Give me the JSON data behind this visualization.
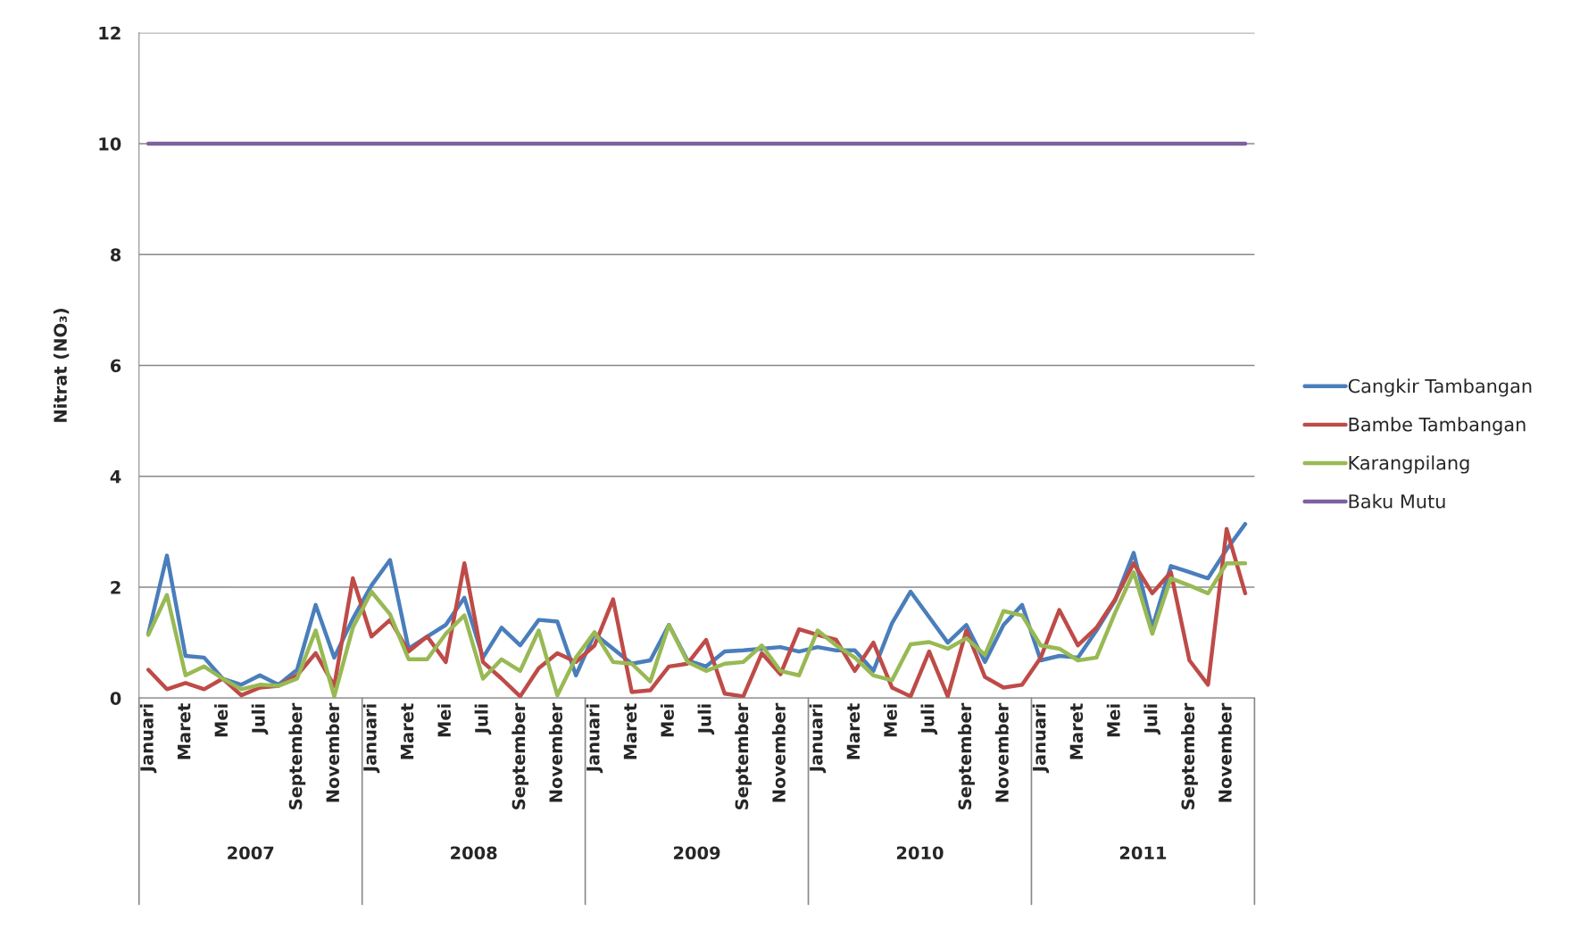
{
  "chart_data": {
    "type": "line",
    "ylabel": "Nitrat (NO₃)",
    "categories": [
      "Januari",
      null,
      "Maret",
      null,
      "Mei",
      null,
      "Juli",
      null,
      "September",
      null,
      "November",
      null,
      "Januari",
      null,
      "Maret",
      null,
      "Mei",
      null,
      "Juli",
      null,
      "September",
      null,
      "November",
      null,
      "Januari",
      null,
      "Maret",
      null,
      "Mei",
      null,
      "Juli",
      null,
      "September",
      null,
      "November",
      null,
      "Januari",
      null,
      "Maret",
      null,
      "Mei",
      null,
      "Juli",
      null,
      "September",
      null,
      "November",
      null,
      "Januari",
      null,
      "Maret",
      null,
      "Mei",
      null,
      "Juli",
      null,
      "September",
      null,
      "November",
      null
    ],
    "annotations": [
      "2007",
      "2008",
      "2009",
      "2010",
      "2011"
    ],
    "series": [
      {
        "name": "Cangkir Tambangan",
        "color": "#4a7ebb",
        "values": [
          1.16,
          2.57,
          0.76,
          0.73,
          0.35,
          0.24,
          0.41,
          0.24,
          0.51,
          1.68,
          0.73,
          1.43,
          2.03,
          2.49,
          0.89,
          1.11,
          1.32,
          1.81,
          0.73,
          1.27,
          0.95,
          1.41,
          1.38,
          0.41,
          1.16,
          0.89,
          0.62,
          0.68,
          1.32,
          0.68,
          0.57,
          0.84,
          0.86,
          0.89,
          0.92,
          0.84,
          0.92,
          0.86,
          0.86,
          0.49,
          1.35,
          1.92,
          1.46,
          1.0,
          1.32,
          0.65,
          1.32,
          1.68,
          0.68,
          0.76,
          0.73,
          1.22,
          1.76,
          2.62,
          1.27,
          2.38,
          2.27,
          2.16,
          2.68,
          3.14
        ]
      },
      {
        "name": "Bambe Tambangan",
        "color": "#be4b48",
        "values": [
          0.51,
          0.16,
          0.27,
          0.16,
          0.35,
          0.05,
          0.19,
          0.22,
          0.41,
          0.81,
          0.22,
          2.16,
          1.11,
          1.41,
          0.84,
          1.11,
          0.65,
          2.43,
          0.65,
          0.35,
          0.03,
          0.54,
          0.81,
          0.65,
          0.95,
          1.78,
          0.11,
          0.14,
          0.57,
          0.62,
          1.05,
          0.08,
          0.03,
          0.81,
          0.43,
          1.24,
          1.14,
          1.05,
          0.49,
          1.0,
          0.19,
          0.03,
          0.84,
          0.03,
          1.22,
          0.38,
          0.19,
          0.24,
          0.73,
          1.59,
          0.95,
          1.27,
          1.78,
          2.43,
          1.89,
          2.27,
          0.68,
          0.24,
          3.05,
          1.89
        ]
      },
      {
        "name": "Karangpilang",
        "color": "#98b954",
        "values": [
          1.14,
          1.86,
          0.41,
          0.57,
          0.35,
          0.16,
          0.24,
          0.22,
          0.35,
          1.22,
          0.03,
          1.27,
          1.92,
          1.51,
          0.7,
          0.7,
          1.16,
          1.49,
          0.35,
          0.7,
          0.49,
          1.22,
          0.05,
          0.73,
          1.19,
          0.65,
          0.62,
          0.3,
          1.32,
          0.65,
          0.49,
          0.62,
          0.65,
          0.95,
          0.49,
          0.41,
          1.22,
          0.95,
          0.73,
          0.41,
          0.32,
          0.97,
          1.01,
          0.89,
          1.08,
          0.78,
          1.57,
          1.49,
          0.95,
          0.89,
          0.68,
          0.73,
          1.54,
          2.27,
          1.16,
          2.16,
          2.03,
          1.89,
          2.43,
          2.43
        ]
      },
      {
        "name": "Baku Mutu",
        "color": "#7d60a0",
        "values": [
          10,
          10,
          10,
          10,
          10,
          10,
          10,
          10,
          10,
          10,
          10,
          10,
          10,
          10,
          10,
          10,
          10,
          10,
          10,
          10,
          10,
          10,
          10,
          10,
          10,
          10,
          10,
          10,
          10,
          10,
          10,
          10,
          10,
          10,
          10,
          10,
          10,
          10,
          10,
          10,
          10,
          10,
          10,
          10,
          10,
          10,
          10,
          10,
          10,
          10,
          10,
          10,
          10,
          10,
          10,
          10,
          10,
          10,
          10,
          10
        ]
      }
    ],
    "ylim": [
      0,
      12
    ],
    "yticks": [
      0,
      2,
      4,
      6,
      8,
      10,
      12
    ],
    "grid": "y",
    "legend": "right",
    "marker": "none",
    "line_style": "solid"
  }
}
